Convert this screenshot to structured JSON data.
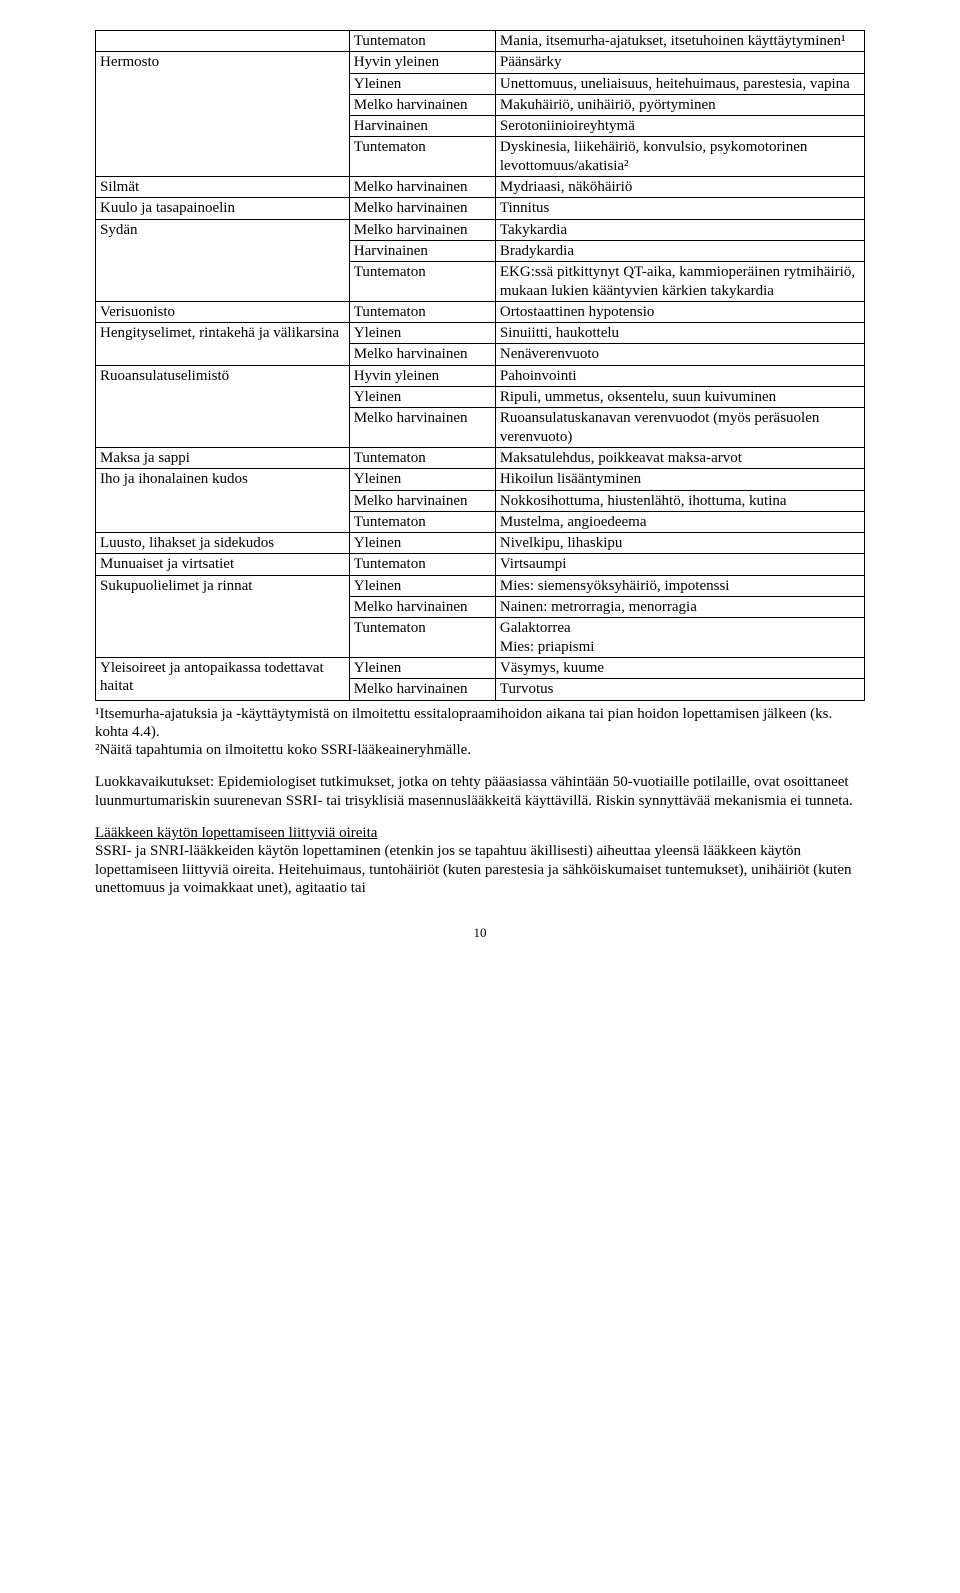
{
  "table": {
    "rows": [
      {
        "c1": "",
        "c2": "Tuntematon",
        "c3": "Mania, itsemurha-ajatukset, itsetuhoinen käyttäytyminen¹"
      },
      {
        "c1": "Hermosto",
        "c2": "Hyvin yleinen",
        "c3": "Päänsärky",
        "r1": 5
      },
      {
        "c2": "Yleinen",
        "c3": "Unettomuus, uneliaisuus, heitehuimaus, parestesia, vapina"
      },
      {
        "c2": "Melko harvinainen",
        "c3": "Makuhäiriö, unihäiriö, pyörtyminen"
      },
      {
        "c2": "Harvinainen",
        "c3": "Serotoniinioireyhtymä"
      },
      {
        "c2": "Tuntematon",
        "c3": "Dyskinesia, liikehäiriö, konvulsio, psykomotorinen levottomuus/akatisia²"
      },
      {
        "c1": "Silmät",
        "c2": "Melko harvinainen",
        "c3": "Mydriaasi, näköhäiriö"
      },
      {
        "c1": "Kuulo ja tasapainoelin",
        "c2": "Melko harvinainen",
        "c3": "Tinnitus"
      },
      {
        "c1": "Sydän",
        "c2": "Melko harvinainen",
        "c3": "Takykardia",
        "r1": 3
      },
      {
        "c2": "Harvinainen",
        "c3": "Bradykardia"
      },
      {
        "c2": "Tuntematon",
        "c3": "EKG:ssä pitkittynyt QT-aika, kammioperäinen rytmihäiriö, mukaan lukien kääntyvien kärkien takykardia"
      },
      {
        "c1": "Verisuonisto",
        "c2": "Tuntematon",
        "c3": "Ortostaattinen hypotensio"
      },
      {
        "c1": "Hengityselimet, rintakehä ja välikarsina",
        "c2": "Yleinen",
        "c3": "Sinuiitti, haukottelu",
        "r1": 2
      },
      {
        "c2": "Melko harvinainen",
        "c3": "Nenäverenvuoto"
      },
      {
        "c1": "Ruoansulatuselimistö",
        "c2": "Hyvin yleinen",
        "c3": "Pahoinvointi",
        "r1": 3
      },
      {
        "c2": "Yleinen",
        "c3": "Ripuli, ummetus, oksentelu, suun kuivuminen"
      },
      {
        "c2": "Melko harvinainen",
        "c3": "Ruoansulatuskanavan verenvuodot (myös peräsuolen verenvuoto)"
      },
      {
        "c1": "Maksa ja sappi",
        "c2": "Tuntematon",
        "c3": "Maksatulehdus, poikkeavat maksa-arvot"
      },
      {
        "c1": "Iho ja ihonalainen kudos",
        "c2": "Yleinen",
        "c3": "Hikoilun lisääntyminen",
        "r1": 3
      },
      {
        "c2": "Melko harvinainen",
        "c3": "Nokkosihottuma, hiustenlähtö, ihottuma, kutina"
      },
      {
        "c2": "Tuntematon",
        "c3": "Mustelma, angioedeema"
      },
      {
        "c1": "Luusto, lihakset ja sidekudos",
        "c2": "Yleinen",
        "c3": "Nivelkipu, lihaskipu"
      },
      {
        "c1": "Munuaiset ja virtsatiet",
        "c2": "Tuntematon",
        "c3": "Virtsaumpi"
      },
      {
        "c1": "Sukupuolielimet ja rinnat",
        "c2": "Yleinen",
        "c3": "Mies: siemensyöksyhäiriö, impotenssi",
        "r1": 3
      },
      {
        "c2": "Melko harvinainen",
        "c3": "Nainen: metrorragia, menorragia"
      },
      {
        "c2": "Tuntematon",
        "c3": "Galaktorrea\nMies: priapismi"
      },
      {
        "c1": "Yleisoireet ja antopaikassa todettavat haitat",
        "c2": "Yleinen",
        "c3": "Väsymys, kuume",
        "r1": 2
      },
      {
        "c2": "Melko harvinainen",
        "c3": "Turvotus"
      }
    ]
  },
  "footnotes": {
    "fn1": "¹Itsemurha-ajatuksia ja -käyttäytymistä on ilmoitettu essitalopraamihoidon aikana tai pian hoidon lopettamisen jälkeen (ks. kohta 4.4).",
    "fn2": "²Näitä tapahtumia on ilmoitettu koko SSRI-lääkeaineryhmälle."
  },
  "para1": "Luokkavaikutukset: Epidemiologiset tutkimukset, jotka on tehty pääasiassa vähintään 50-vuotiaille potilaille, ovat osoittaneet luunmurtumariskin suurenevan SSRI- tai trisyklisiä masennuslääkkeitä käyttävillä. Riskin synnyttävää mekanismia ei tunneta.",
  "para2_heading": "Lääkkeen käytön lopettamiseen liittyviä oireita",
  "para2_body": "SSRI- ja SNRI-lääkkeiden käytön lopettaminen (etenkin jos se tapahtuu äkillisesti) aiheuttaa yleensä lääkkeen käytön lopettamiseen liittyviä oireita. Heitehuimaus, tuntohäiriöt (kuten parestesia ja sähköiskumaiset tuntemukset), unihäiriöt (kuten unettomuus ja voimakkaat unet), agitaatio tai",
  "page_number": "10"
}
